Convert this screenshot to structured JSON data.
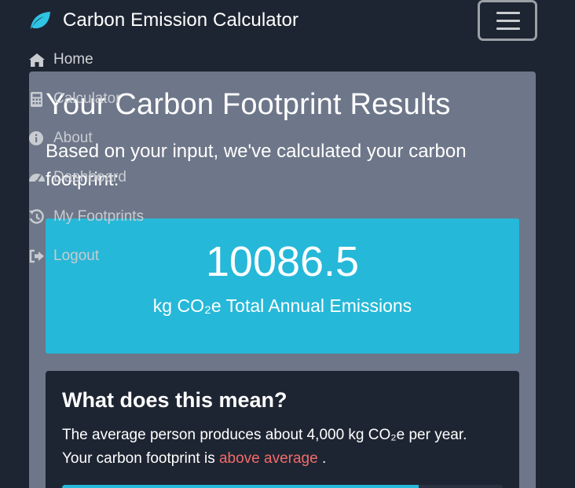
{
  "navbar": {
    "brand": "Carbon Emission Calculator",
    "brand_icon": "leaf-icon",
    "toggle_icon": "menu-icon",
    "menu": [
      {
        "label": "Home",
        "icon": "home-icon"
      },
      {
        "label": "Calculator",
        "icon": "calculator-icon"
      },
      {
        "label": "About",
        "icon": "info-icon"
      },
      {
        "label": "Dashboard",
        "icon": "dashboard-icon"
      },
      {
        "label": "My Footprints",
        "icon": "history-icon"
      },
      {
        "label": "Logout",
        "icon": "logout-icon"
      }
    ]
  },
  "results": {
    "title": "Your Carbon Footprint Results",
    "subtitle": "Based on your input, we've calculated your carbon footprint:",
    "total_value": "10086.5",
    "total_label": "kg CO₂e Total Annual Emissions"
  },
  "info": {
    "title": "What does this mean?",
    "line1": "The average person produces about 4,000 kg CO₂e per year.",
    "line2_prefix": "Your carbon footprint is",
    "line2_highlight": "above average",
    "line2_suffix": ".",
    "progress_fraction": 0.81
  },
  "colors": {
    "accent": "#26b8d8",
    "background": "#1e2532",
    "card": "#6e7689",
    "warning_text": "#f16b6b"
  }
}
